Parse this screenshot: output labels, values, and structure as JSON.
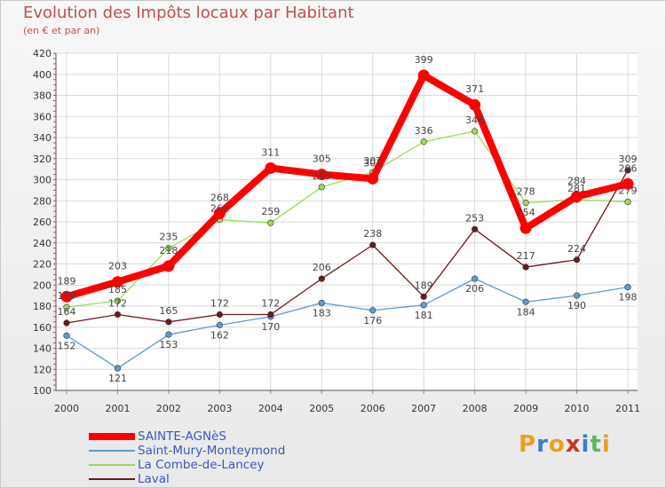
{
  "title": "Evolution des Impôts locaux par Habitant",
  "subtitle": "(en € et par an)",
  "logo": "Proxiti",
  "chart_data": {
    "type": "line",
    "categories": [
      "2000",
      "2001",
      "2002",
      "2003",
      "2004",
      "2005",
      "2006",
      "2007",
      "2008",
      "2009",
      "2010",
      "2011"
    ],
    "ylim": [
      100,
      420
    ],
    "yticks": [
      100,
      120,
      140,
      160,
      180,
      200,
      220,
      240,
      260,
      280,
      300,
      320,
      340,
      360,
      380,
      400,
      420
    ],
    "grid": true,
    "series": [
      {
        "name": "SAINTE-AGNèS",
        "color": "#ff0000",
        "values": [
          189,
          203,
          218,
          268,
          311,
          305,
          301,
          399,
          371,
          254,
          284,
          296
        ],
        "labels": [
          "189",
          "203",
          "218",
          "268",
          "311",
          "305",
          "301",
          "399",
          "371",
          "254",
          "284",
          "296"
        ]
      },
      {
        "name": "Saint-Mury-Monteymond",
        "color": "#5b9bd5",
        "values": [
          152,
          121,
          153,
          162,
          170,
          183,
          176,
          181,
          206,
          184,
          190,
          198
        ],
        "labels": [
          "152",
          "121",
          "153",
          "162",
          "170",
          "183",
          "176",
          "181",
          "206",
          "184",
          "190",
          "198"
        ]
      },
      {
        "name": "La Combe-de-Lancey",
        "color": "#99dd55",
        "values": [
          179,
          185,
          235,
          262,
          259,
          293,
          307,
          336,
          346,
          278,
          281,
          279
        ],
        "labels": [
          "179",
          "185",
          "235",
          "262",
          "259",
          "293",
          "307",
          "336",
          "346",
          "278",
          "281",
          "279"
        ]
      },
      {
        "name": "Laval",
        "color": "#6b1a1a",
        "values": [
          164,
          172,
          165,
          172,
          172,
          206,
          238,
          189,
          253,
          217,
          224,
          309
        ],
        "labels": [
          "164",
          "172",
          "165",
          "172",
          "172",
          "206",
          "238",
          "189",
          "253",
          "217",
          "224",
          "309"
        ]
      }
    ]
  }
}
